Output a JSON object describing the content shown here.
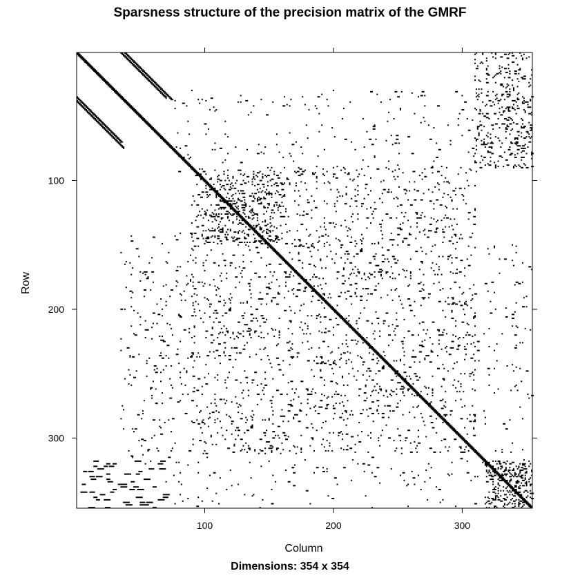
{
  "chart_data": {
    "type": "heatmap",
    "title": "Sparsness structure of the precision matrix of the GMRF",
    "xlabel": "Column",
    "ylabel": "Row",
    "caption": "Dimensions: 354 x 354",
    "dimensions": {
      "rows": 354,
      "cols": 354
    },
    "xlim": [
      1,
      354
    ],
    "ylim": [
      1,
      354
    ],
    "y_reversed": true,
    "x_ticks": [
      100,
      200,
      300
    ],
    "y_ticks": [
      100,
      200,
      300
    ],
    "nonzero_color": "#000000",
    "background_color": "#ffffff",
    "structures": {
      "main_diagonal": {
        "from": 1,
        "to": 354
      },
      "off_diagonal_bands": [
        {
          "label": "upper band",
          "row_from": 1,
          "row_to": 37,
          "col_offset": 37
        },
        {
          "label": "lower band",
          "row_from": 35,
          "row_to": 70,
          "col_offset": -35
        }
      ],
      "dense_blocks": [
        {
          "label": "central block",
          "rows": [
            90,
            312
          ],
          "cols": [
            90,
            310
          ],
          "density": 0.035
        },
        {
          "label": "upper-right block",
          "rows": [
            1,
            90
          ],
          "cols": [
            310,
            354
          ],
          "density": 0.08
        },
        {
          "label": "lower-right block",
          "rows": [
            318,
            354
          ],
          "cols": [
            318,
            354
          ],
          "density": 0.18
        },
        {
          "label": "local cluster",
          "rows": [
            95,
            150
          ],
          "cols": [
            100,
            160
          ],
          "density": 0.09
        }
      ],
      "sparse_regions": [
        {
          "label": "top strip",
          "rows": [
            30,
            95
          ],
          "cols": [
            75,
            354
          ],
          "density": 0.012
        },
        {
          "label": "left strip",
          "rows": [
            140,
            320
          ],
          "cols": [
            35,
            92
          ],
          "density": 0.02
        },
        {
          "label": "bottom strip",
          "rows": [
            315,
            354
          ],
          "cols": [
            70,
            354
          ],
          "density": 0.012
        },
        {
          "label": "right strip",
          "rows": [
            150,
            315
          ],
          "cols": [
            310,
            354
          ],
          "density": 0.012
        }
      ],
      "staircase_dashes": [
        {
          "label": "lower-left staircase",
          "rows": [
            318,
            354
          ],
          "cols": [
            1,
            70
          ]
        }
      ]
    }
  }
}
